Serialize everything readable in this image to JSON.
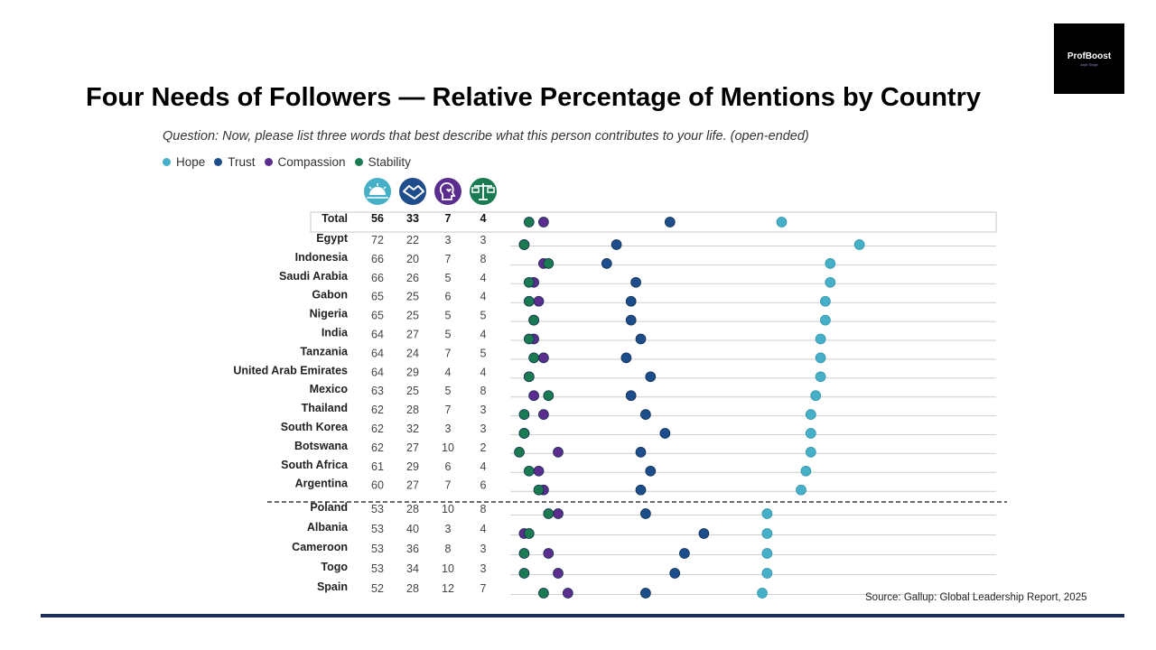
{
  "title": "Four Needs of Followers — Relative Percentage of Mentions by Country",
  "logo": {
    "brand": "ProfBoost",
    "tagline": "Arpit Singh"
  },
  "question": "Question: Now, please list three words that best describe what this person contributes to your life. (open-ended)",
  "source": "Source: Gallup: Global Leadership Report, 2025",
  "colors": {
    "hope": "#45b0c8",
    "trust": "#1e4d8c",
    "compassion": "#5b2d8e",
    "stability": "#1a7a52"
  },
  "icons": [
    "sunrise-icon",
    "handshake-icon",
    "heart-head-icon",
    "scale-icon"
  ],
  "chart_data": {
    "type": "scatter",
    "legend": {
      "position": "top-left"
    },
    "series": [
      {
        "key": "hope",
        "name": "Hope"
      },
      {
        "key": "trust",
        "name": "Trust"
      },
      {
        "key": "compassion",
        "name": "Compassion"
      },
      {
        "key": "stability",
        "name": "Stability"
      }
    ],
    "total": {
      "label": "Total",
      "hope": 56,
      "trust": 33,
      "compassion": 7,
      "stability": 4
    },
    "rows": [
      {
        "country": "Egypt",
        "hope": 72,
        "trust": 22,
        "compassion": 3,
        "stability": 3
      },
      {
        "country": "Indonesia",
        "hope": 66,
        "trust": 20,
        "compassion": 7,
        "stability": 8
      },
      {
        "country": "Saudi Arabia",
        "hope": 66,
        "trust": 26,
        "compassion": 5,
        "stability": 4
      },
      {
        "country": "Gabon",
        "hope": 65,
        "trust": 25,
        "compassion": 6,
        "stability": 4
      },
      {
        "country": "Nigeria",
        "hope": 65,
        "trust": 25,
        "compassion": 5,
        "stability": 5
      },
      {
        "country": "India",
        "hope": 64,
        "trust": 27,
        "compassion": 5,
        "stability": 4
      },
      {
        "country": "Tanzania",
        "hope": 64,
        "trust": 24,
        "compassion": 7,
        "stability": 5
      },
      {
        "country": "United Arab Emirates",
        "hope": 64,
        "trust": 29,
        "compassion": 4,
        "stability": 4
      },
      {
        "country": "Mexico",
        "hope": 63,
        "trust": 25,
        "compassion": 5,
        "stability": 8
      },
      {
        "country": "Thailand",
        "hope": 62,
        "trust": 28,
        "compassion": 7,
        "stability": 3
      },
      {
        "country": "South Korea",
        "hope": 62,
        "trust": 32,
        "compassion": 3,
        "stability": 3
      },
      {
        "country": "Botswana",
        "hope": 62,
        "trust": 27,
        "compassion": 10,
        "stability": 2
      },
      {
        "country": "South Africa",
        "hope": 61,
        "trust": 29,
        "compassion": 6,
        "stability": 4
      },
      {
        "country": "Argentina",
        "hope": 60,
        "trust": 27,
        "compassion": 7,
        "stability": 6
      },
      {
        "country": "Poland",
        "hope": 53,
        "trust": 28,
        "compassion": 10,
        "stability": 8
      },
      {
        "country": "Albania",
        "hope": 53,
        "trust": 40,
        "compassion": 3,
        "stability": 4
      },
      {
        "country": "Cameroon",
        "hope": 53,
        "trust": 36,
        "compassion": 8,
        "stability": 3
      },
      {
        "country": "Togo",
        "hope": 53,
        "trust": 34,
        "compassion": 10,
        "stability": 3
      },
      {
        "country": "Spain",
        "hope": 52,
        "trust": 28,
        "compassion": 12,
        "stability": 7
      }
    ],
    "separator_after_index": 13
  }
}
